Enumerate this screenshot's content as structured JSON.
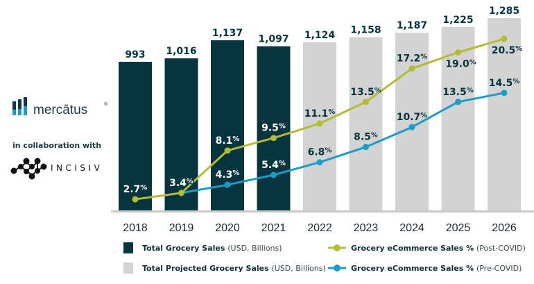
{
  "chart_data": {
    "type": "bar",
    "categories": [
      "2018",
      "2019",
      "2020",
      "2021",
      "2022",
      "2023",
      "2024",
      "2025",
      "2026"
    ],
    "series": [
      {
        "name": "Total Grocery Sales",
        "unit_note": "(USD, Billions)",
        "kind": "bar",
        "color": "#06343f",
        "values": [
          993,
          1016,
          1137,
          1097,
          null,
          null,
          null,
          null,
          null
        ],
        "labels": [
          "993",
          "1,016",
          "1,137",
          "1,097",
          null,
          null,
          null,
          null,
          null
        ]
      },
      {
        "name": "Total Projected Grocery Sales",
        "unit_note": "(USD, Billions)",
        "kind": "bar",
        "color": "#d3d3d3",
        "values": [
          null,
          null,
          null,
          null,
          1124,
          1158,
          1187,
          1225,
          1285
        ],
        "labels": [
          null,
          null,
          null,
          null,
          "1,124",
          "1,158",
          "1,187",
          "1,225",
          "1,285"
        ]
      },
      {
        "name": "Grocery eCommerce Sales %",
        "unit_note": "(Post-COVID)",
        "kind": "line",
        "color": "#b4bc33",
        "values": [
          2.7,
          3.4,
          8.1,
          9.5,
          11.1,
          13.5,
          17.2,
          19.0,
          20.5
        ]
      },
      {
        "name": "Grocery eCommerce Sales %",
        "unit_note": "(Pre-COVID)",
        "kind": "line",
        "color": "#1b9dc6",
        "values": [
          null,
          3.4,
          4.3,
          5.4,
          6.8,
          8.5,
          10.7,
          13.5,
          14.5
        ]
      }
    ],
    "ylim_bars": [
      0,
      1400
    ],
    "ylim_pct": [
      0,
      24
    ],
    "grid": false,
    "legend": "bottom"
  },
  "branding": {
    "logo1": "mercātus",
    "logo1_mark": "®",
    "collab": "in collaboration with",
    "logo2": "INCISIV"
  }
}
